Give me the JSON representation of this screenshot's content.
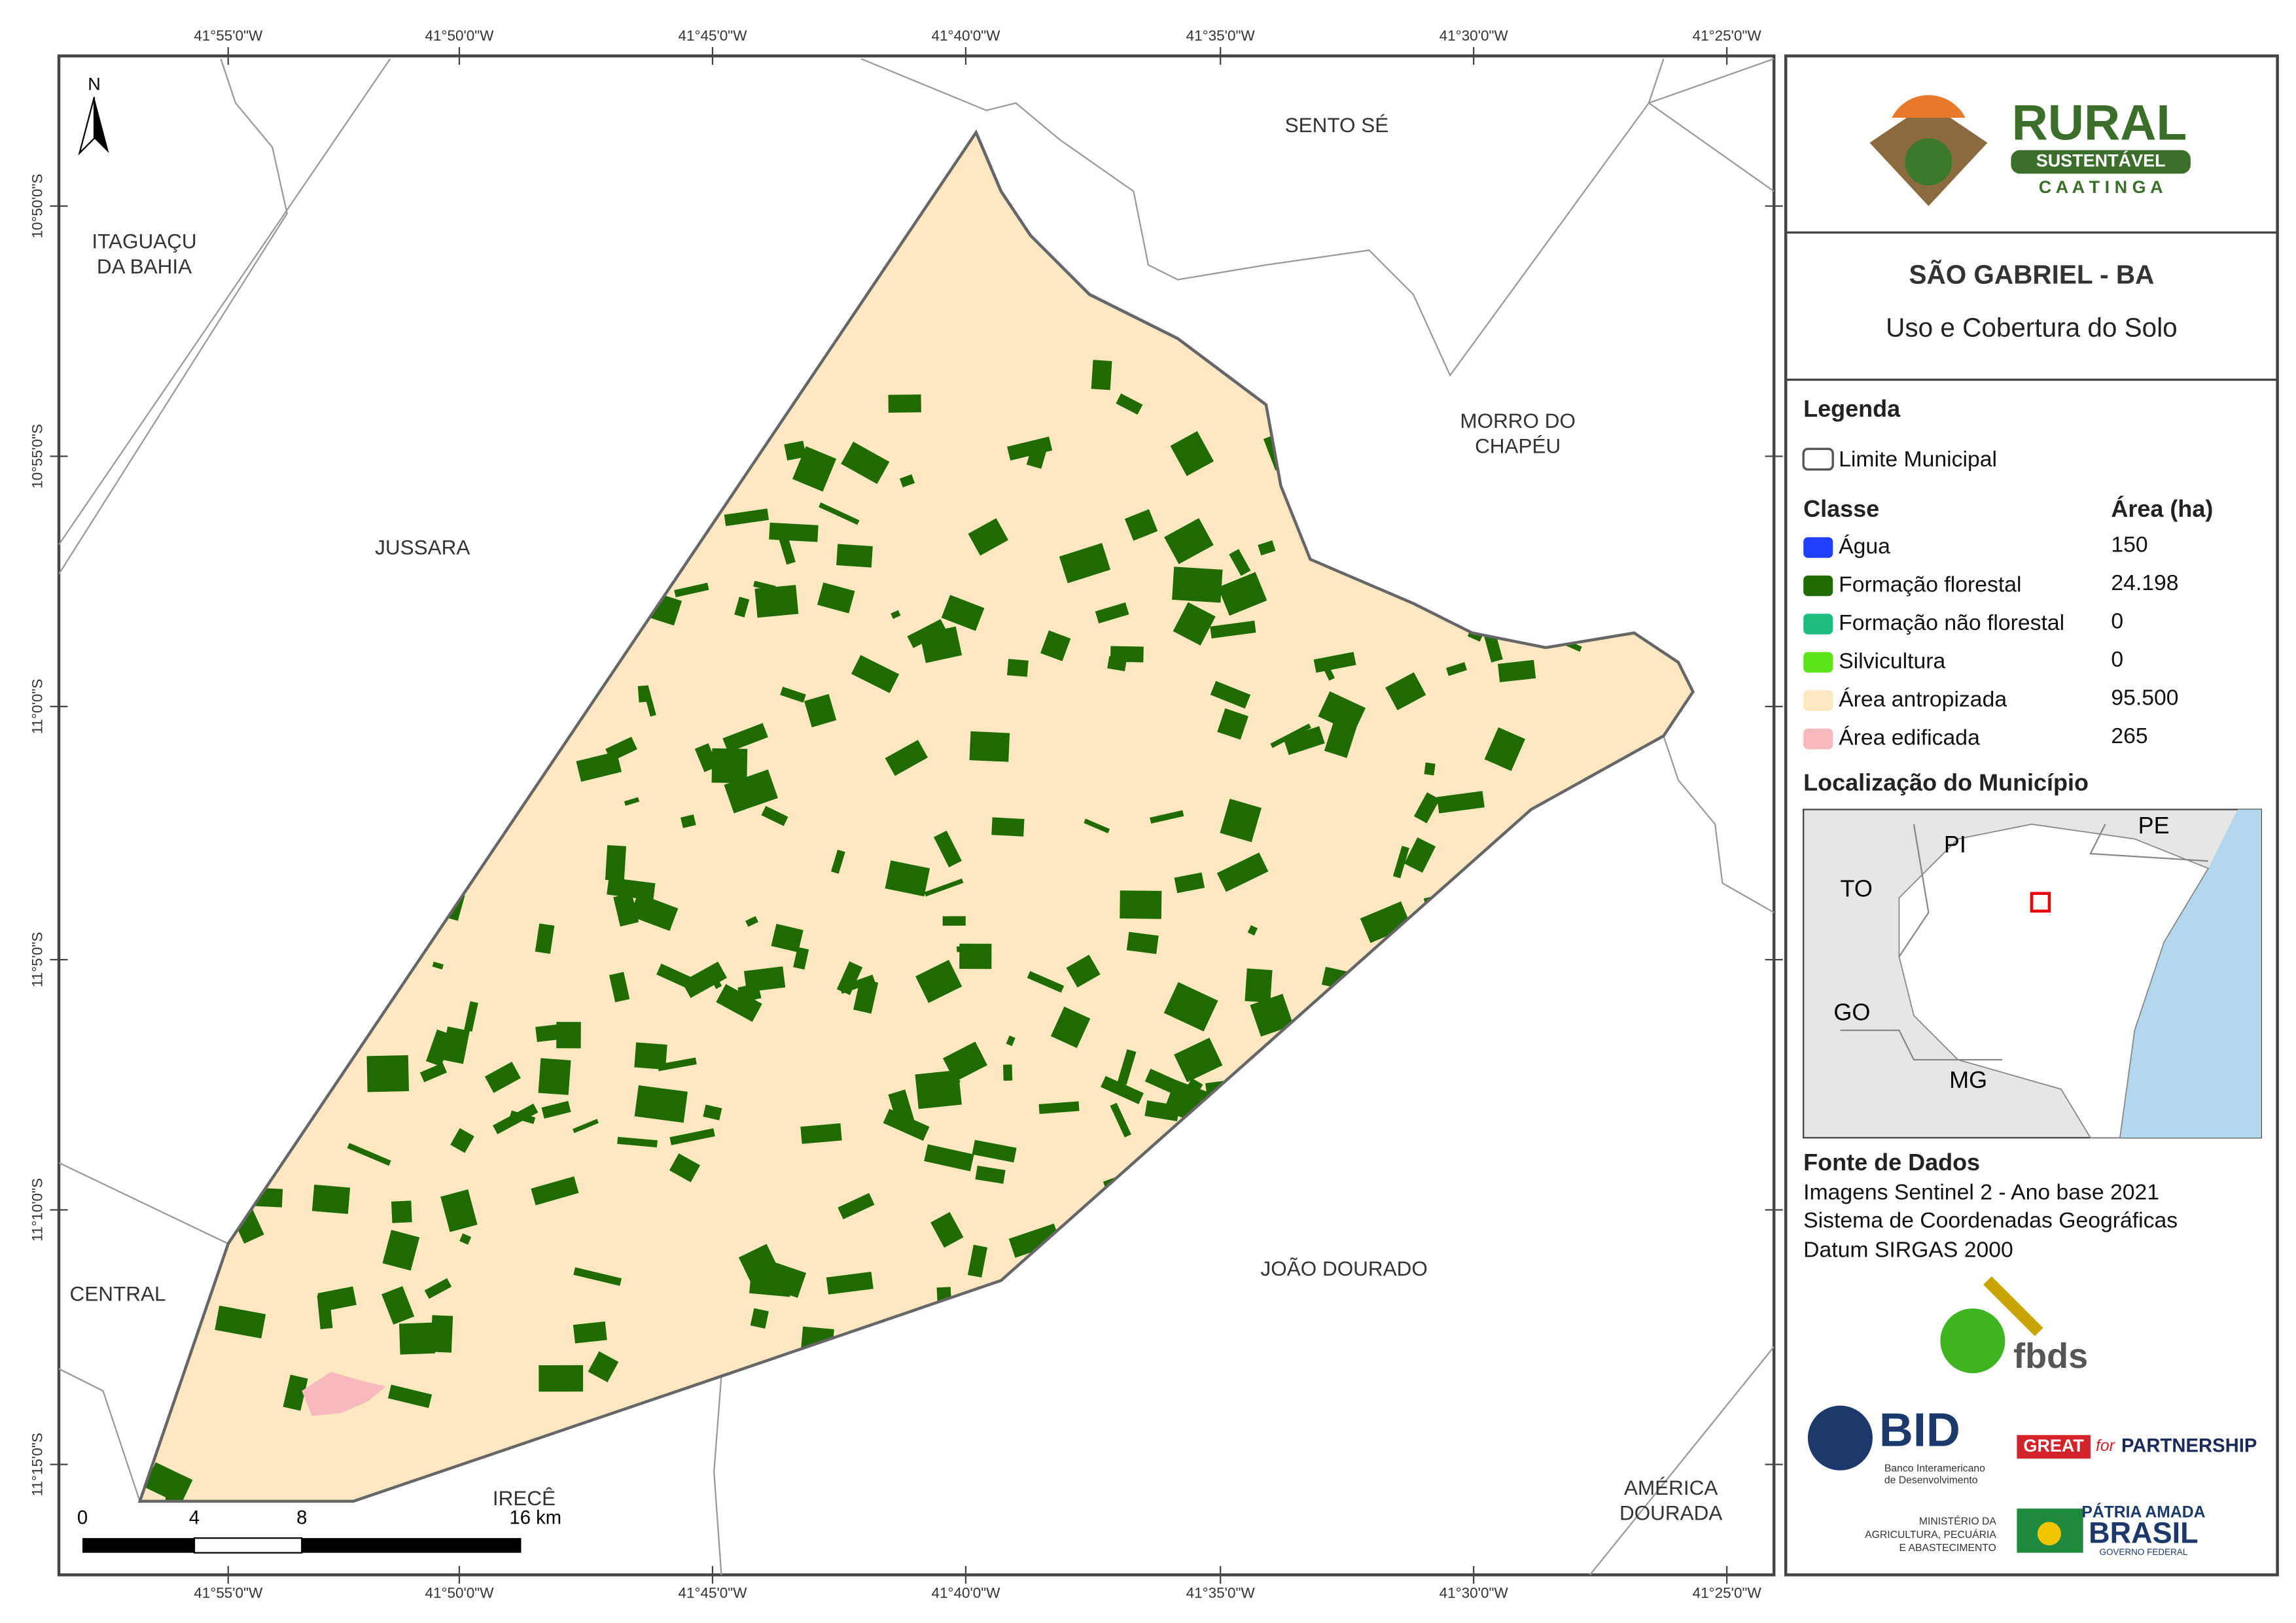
{
  "map": {
    "north": "N",
    "lon_labels": [
      "41°55'0\"W",
      "41°50'0\"W",
      "41°45'0\"W",
      "41°40'0\"W",
      "41°35'0\"W",
      "41°30'0\"W",
      "41°25'0\"W"
    ],
    "lat_labels": [
      "10°50'0\"S",
      "10°55'0\"S",
      "11°0'0\"S",
      "11°5'0\"S",
      "11°10'0\"S",
      "11°15'0\"S"
    ],
    "places": [
      {
        "lines": [
          "ITAGUAÇU",
          "DA BAHIA"
        ]
      },
      {
        "lines": [
          "SENTO SÉ"
        ]
      },
      {
        "lines": [
          "MORRO DO",
          "CHAPÉU"
        ]
      },
      {
        "lines": [
          "JUSSARA"
        ]
      },
      {
        "lines": [
          "CENTRAL"
        ]
      },
      {
        "lines": [
          "JOÃO DOURADO"
        ]
      },
      {
        "lines": [
          "IRECÊ"
        ]
      },
      {
        "lines": [
          "AMÉRICA",
          "DOURADA"
        ]
      }
    ],
    "scale_labels": [
      "0",
      "4",
      "8",
      "16 km"
    ]
  },
  "logo": {
    "rural": "RURAL",
    "sustentavel": "SUSTENTÁVEL",
    "caatinga": "C A A T I N G A"
  },
  "header": {
    "title": "SÃO GABRIEL - BA",
    "subtitle": "Uso e Cobertura do Solo"
  },
  "legend": {
    "title": "Legenda",
    "boundary": "Limite Municipal",
    "class_header": "Classe",
    "area_header": "Área (ha)",
    "classes": [
      {
        "name": "Água",
        "color": "#1f3fff",
        "area": "150"
      },
      {
        "name": "Formação florestal",
        "color": "#1f6b00",
        "area": "24.198"
      },
      {
        "name": "Formação não florestal",
        "color": "#1ebc7e",
        "area": "0"
      },
      {
        "name": "Silvicultura",
        "color": "#5be51a",
        "area": "0"
      },
      {
        "name": "Área antropizada",
        "color": "#fde8c2",
        "area": "95.500"
      },
      {
        "name": "Área edificada",
        "color": "#f7b9bd",
        "area": "265"
      }
    ]
  },
  "location": {
    "title": "Localização do Município",
    "states": [
      "PI",
      "PE",
      "TO",
      "GO",
      "MG"
    ]
  },
  "sources": {
    "title": "Fonte de Dados",
    "lines": [
      "Imagens Sentinel 2 - Ano base 2021",
      "Sistema de Coordenadas Geográficas",
      "Datum SIRGAS 2000"
    ]
  },
  "logos": {
    "fbds": "fbds",
    "bid": "BID",
    "bid_sub": [
      "Banco Interamericano",
      "de Desenvolvimento"
    ],
    "great": "GREAT",
    "for": "for",
    "partnership": "PARTNERSHIP",
    "ministry": [
      "MINISTÉRIO DA",
      "AGRICULTURA, PECUÁRIA",
      "E ABASTECIMENTO"
    ],
    "patria": "PÁTRIA AMADA",
    "brasil": "BRASIL",
    "governo": "GOVERNO FEDERAL"
  }
}
